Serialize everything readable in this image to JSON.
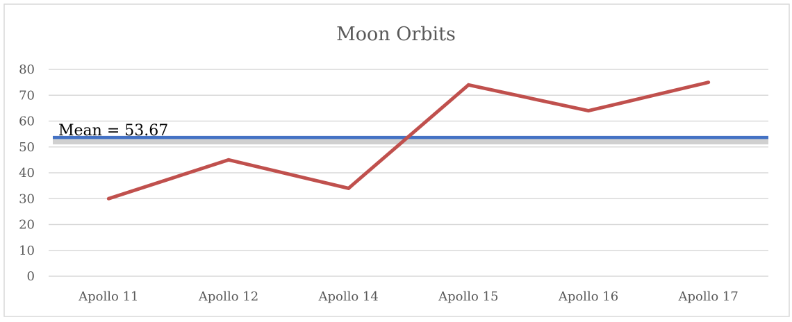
{
  "chart_data": {
    "type": "line",
    "title": "Moon Orbits",
    "categories": [
      "Apollo 11",
      "Apollo 12",
      "Apollo 14",
      "Apollo 15",
      "Apollo 16",
      "Apollo 17"
    ],
    "series": [
      {
        "values": [
          30,
          45,
          34,
          74,
          64,
          75
        ],
        "color": "#c0504d"
      }
    ],
    "reference_line": {
      "label": "Mean = 53.67",
      "value": 53.67,
      "color": "#4472c4"
    },
    "ylim": [
      0,
      80
    ],
    "yticks": [
      "0",
      "10",
      "20",
      "30",
      "40",
      "50",
      "60",
      "70",
      "80"
    ],
    "grid": true,
    "legend": "none",
    "xlabel": "",
    "ylabel": ""
  }
}
